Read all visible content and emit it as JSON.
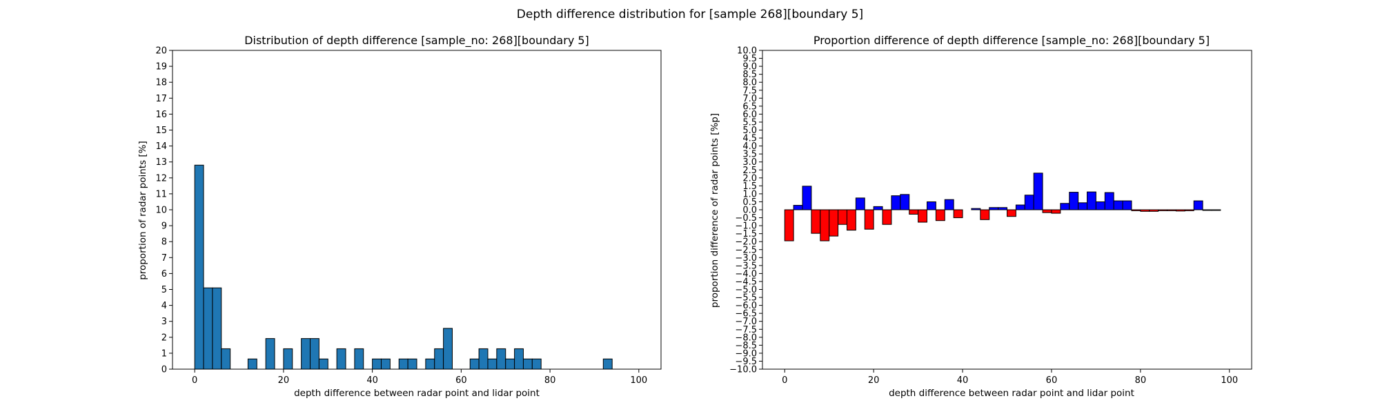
{
  "figure": {
    "suptitle": "Depth difference distribution for [sample 268][boundary 5]"
  },
  "chart_data": [
    {
      "type": "bar",
      "title": "Distribution of depth difference [sample_no: 268][boundary 5]",
      "xlabel": "depth difference between radar point and lidar point",
      "ylabel": "proportion of radar points [%]",
      "xlim": [
        -5,
        105
      ],
      "ylim": [
        0,
        20
      ],
      "x_ticks": [
        0,
        20,
        40,
        60,
        80,
        100
      ],
      "y_ticks": [
        0,
        1,
        2,
        3,
        4,
        5,
        6,
        7,
        8,
        9,
        10,
        11,
        12,
        13,
        14,
        15,
        16,
        17,
        18,
        19,
        20
      ],
      "bin_width": 2,
      "bar_color": "#1f77b4",
      "edge_color": "#000000",
      "bins": [
        0,
        2,
        4,
        6,
        8,
        10,
        12,
        14,
        16,
        18,
        20,
        22,
        24,
        26,
        28,
        30,
        32,
        34,
        36,
        38,
        40,
        42,
        44,
        46,
        48,
        50,
        52,
        54,
        56,
        58,
        60,
        62,
        64,
        66,
        68,
        70,
        72,
        74,
        76,
        78,
        80,
        82,
        84,
        86,
        88,
        90,
        92,
        94,
        96,
        98
      ],
      "values": [
        12.8,
        5.1,
        5.1,
        1.28,
        0,
        0,
        0.64,
        0,
        1.92,
        0,
        1.28,
        0,
        1.92,
        1.92,
        0.64,
        0,
        1.28,
        0,
        1.28,
        0,
        0.64,
        0.64,
        0,
        0.64,
        0.64,
        0,
        0.64,
        1.28,
        2.56,
        0,
        0,
        0.64,
        1.28,
        0.64,
        1.28,
        0.64,
        1.28,
        0.64,
        0.64,
        0,
        0,
        0,
        0,
        0,
        0,
        0,
        0.64,
        0,
        0,
        0
      ]
    },
    {
      "type": "bar",
      "title": "Proportion difference of depth difference [sample_no: 268][boundary 5]",
      "xlabel": "depth difference between radar point and lidar point",
      "ylabel": "proportion difference of radar points [%p]",
      "xlim": [
        -5,
        105
      ],
      "ylim": [
        -10,
        10
      ],
      "x_ticks": [
        0,
        20,
        40,
        60,
        80,
        100
      ],
      "y_tick_step": 0.5,
      "bin_width": 2,
      "positive_color": "#0000ff",
      "negative_color": "#ff0000",
      "edge_color": "#000000",
      "bins": [
        0,
        2,
        4,
        6,
        8,
        10,
        12,
        14,
        16,
        18,
        20,
        22,
        24,
        26,
        28,
        30,
        32,
        34,
        36,
        38,
        40,
        42,
        44,
        46,
        48,
        50,
        52,
        54,
        56,
        58,
        60,
        62,
        64,
        66,
        68,
        70,
        72,
        74,
        76,
        78,
        80,
        82,
        84,
        86,
        88,
        90,
        92,
        94,
        96,
        98
      ],
      "values": [
        -1.95,
        0.28,
        1.48,
        -1.48,
        -1.95,
        -1.65,
        -0.92,
        -1.28,
        0.74,
        -1.22,
        0.2,
        -0.92,
        0.88,
        0.96,
        -0.28,
        -0.78,
        0.5,
        -0.68,
        0.64,
        -0.5,
        0,
        0.08,
        -0.62,
        0.14,
        0.14,
        -0.42,
        0.3,
        0.92,
        2.3,
        -0.18,
        -0.22,
        0.4,
        1.1,
        0.44,
        1.12,
        0.5,
        1.08,
        0.56,
        0.56,
        -0.06,
        -0.1,
        -0.1,
        -0.06,
        -0.06,
        -0.08,
        -0.06,
        0.56,
        -0.04,
        -0.04,
        0
      ]
    }
  ]
}
